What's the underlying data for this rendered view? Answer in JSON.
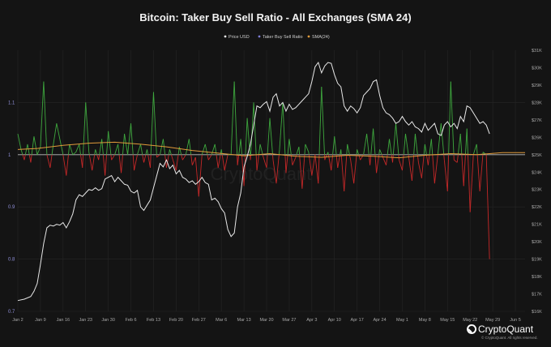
{
  "chart_data": {
    "type": "line",
    "title": "Bitcoin: Taker Buy Sell Ratio - All Exchanges (SMA 24)",
    "legend": {
      "placement": "top-center",
      "entries": [
        {
          "label": "Price USD",
          "color": "#e8e8e8"
        },
        {
          "label": "Taker Buy Sell Ratio",
          "color": "#7e7ed8"
        },
        {
          "label": "SMA(24)",
          "color": "#e09a3a"
        }
      ]
    },
    "colors": {
      "price": "#e8e8e8",
      "ratio_up": "#3ea83e",
      "ratio_down": "#c62828",
      "sma": "#e09a3a",
      "baseline": "#bdbdbd",
      "grid": "#262626",
      "left_axis": "#8f8fd8"
    },
    "x_ticks": [
      "Jan 2",
      "Jan 9",
      "Jan 16",
      "Jan 23",
      "Jan 30",
      "Feb 6",
      "Feb 13",
      "Feb 20",
      "Feb 27",
      "Mar 6",
      "Mar 13",
      "Mar 20",
      "Mar 27",
      "Apr 3",
      "Apr 10",
      "Apr 17",
      "Apr 24",
      "May 1",
      "May 8",
      "May 15",
      "May 22",
      "May 29",
      "Jun 5"
    ],
    "left_axis": {
      "ticks": [
        "0.7",
        "0.8",
        "0.9",
        "1",
        "1.1"
      ],
      "min": 0.7,
      "max": 1.2
    },
    "right_axis": {
      "ticks": [
        "$16K",
        "$17K",
        "$18K",
        "$19K",
        "$20K",
        "$21K",
        "$22K",
        "$23K",
        "$24K",
        "$25K",
        "$26K",
        "$27K",
        "$28K",
        "$29K",
        "$30K",
        "$31K"
      ],
      "min": 16000,
      "max": 31000
    },
    "grid": true,
    "x_range_days": [
      0,
      157
    ],
    "series": [
      {
        "name": "Price USD",
        "axis": "right",
        "points": [
          [
            0,
            16620
          ],
          [
            2,
            16700
          ],
          [
            4,
            16850
          ],
          [
            5,
            17150
          ],
          [
            6,
            17600
          ],
          [
            7,
            18700
          ],
          [
            8,
            19900
          ],
          [
            9,
            20800
          ],
          [
            10,
            20950
          ],
          [
            11,
            20900
          ],
          [
            12,
            21000
          ],
          [
            13,
            20950
          ],
          [
            14,
            21100
          ],
          [
            15,
            20800
          ],
          [
            16,
            21150
          ],
          [
            17,
            21600
          ],
          [
            18,
            22400
          ],
          [
            19,
            22700
          ],
          [
            20,
            22600
          ],
          [
            21,
            22800
          ],
          [
            22,
            23000
          ],
          [
            23,
            22950
          ],
          [
            24,
            23100
          ],
          [
            25,
            22950
          ],
          [
            26,
            23050
          ],
          [
            27,
            23600
          ],
          [
            28,
            23700
          ],
          [
            29,
            23800
          ],
          [
            30,
            23450
          ],
          [
            31,
            23700
          ],
          [
            32,
            23500
          ],
          [
            33,
            23300
          ],
          [
            34,
            23250
          ],
          [
            35,
            22900
          ],
          [
            36,
            22800
          ],
          [
            37,
            22950
          ],
          [
            38,
            22000
          ],
          [
            39,
            21800
          ],
          [
            40,
            22100
          ],
          [
            41,
            22400
          ],
          [
            42,
            23100
          ],
          [
            43,
            23800
          ],
          [
            44,
            24500
          ],
          [
            45,
            24300
          ],
          [
            46,
            24700
          ],
          [
            47,
            24200
          ],
          [
            48,
            24400
          ],
          [
            49,
            23900
          ],
          [
            50,
            24100
          ],
          [
            51,
            23700
          ],
          [
            52,
            23600
          ],
          [
            53,
            23400
          ],
          [
            54,
            23500
          ],
          [
            55,
            23300
          ],
          [
            56,
            23450
          ],
          [
            57,
            23700
          ],
          [
            58,
            23400
          ],
          [
            59,
            23300
          ],
          [
            60,
            22400
          ],
          [
            61,
            22500
          ],
          [
            62,
            22300
          ],
          [
            63,
            21900
          ],
          [
            64,
            21650
          ],
          [
            65,
            20700
          ],
          [
            66,
            20300
          ],
          [
            67,
            20500
          ],
          [
            68,
            22000
          ],
          [
            69,
            22800
          ],
          [
            70,
            24300
          ],
          [
            71,
            24900
          ],
          [
            72,
            25600
          ],
          [
            73,
            26700
          ],
          [
            74,
            27800
          ],
          [
            75,
            27700
          ],
          [
            76,
            27900
          ],
          [
            77,
            28050
          ],
          [
            78,
            27500
          ],
          [
            79,
            28300
          ],
          [
            80,
            28500
          ],
          [
            81,
            27800
          ],
          [
            82,
            28000
          ],
          [
            83,
            27500
          ],
          [
            84,
            27900
          ],
          [
            85,
            27600
          ],
          [
            86,
            27700
          ],
          [
            87,
            27900
          ],
          [
            88,
            28100
          ],
          [
            89,
            28300
          ],
          [
            90,
            28500
          ],
          [
            91,
            29200
          ],
          [
            92,
            30050
          ],
          [
            93,
            30300
          ],
          [
            94,
            29700
          ],
          [
            95,
            30100
          ],
          [
            96,
            30300
          ],
          [
            97,
            30250
          ],
          [
            98,
            29600
          ],
          [
            99,
            29100
          ],
          [
            100,
            28900
          ],
          [
            101,
            27800
          ],
          [
            102,
            27500
          ],
          [
            103,
            27800
          ],
          [
            104,
            27650
          ],
          [
            105,
            27400
          ],
          [
            106,
            27700
          ],
          [
            107,
            28400
          ],
          [
            108,
            28600
          ],
          [
            109,
            28800
          ],
          [
            110,
            29200
          ],
          [
            111,
            29300
          ],
          [
            112,
            28400
          ],
          [
            113,
            27700
          ],
          [
            114,
            27400
          ],
          [
            115,
            27300
          ],
          [
            116,
            27100
          ],
          [
            117,
            26800
          ],
          [
            118,
            26900
          ],
          [
            119,
            27200
          ],
          [
            120,
            26900
          ],
          [
            121,
            26700
          ],
          [
            122,
            26900
          ],
          [
            123,
            26600
          ],
          [
            124,
            26500
          ],
          [
            125,
            26300
          ],
          [
            126,
            26800
          ],
          [
            127,
            26400
          ],
          [
            128,
            26600
          ],
          [
            129,
            26800
          ],
          [
            130,
            26200
          ],
          [
            131,
            26100
          ],
          [
            132,
            26700
          ],
          [
            133,
            26900
          ],
          [
            134,
            26600
          ],
          [
            135,
            26800
          ],
          [
            136,
            26500
          ],
          [
            137,
            27200
          ],
          [
            138,
            26900
          ],
          [
            139,
            27800
          ],
          [
            140,
            27700
          ],
          [
            141,
            27400
          ],
          [
            142,
            27100
          ],
          [
            143,
            26800
          ],
          [
            144,
            26900
          ],
          [
            145,
            26700
          ],
          [
            146,
            26200
          ]
        ]
      },
      {
        "name": "Taker Buy Sell Ratio",
        "axis": "left",
        "base": 1.0,
        "values": [
          1.04,
          1.01,
          0.99,
          1.02,
          0.985,
          1.035,
          1.0,
          1.015,
          1.14,
          1.0,
          0.975,
          1.02,
          1.06,
          1.03,
          1.0,
          0.96,
          1.02,
          1.0,
          1.005,
          1.02,
          0.975,
          1.1,
          1.005,
          0.97,
          1.01,
          0.99,
          1.03,
          0.96,
          1.045,
          0.99,
          1.0,
          1.02,
          0.965,
          1.04,
          1.0,
          1.06,
          0.97,
          1.0,
          1.02,
          0.985,
          1.01,
          0.975,
          1.12,
          0.995,
          1.0,
          1.03,
          0.975,
          1.01,
          0.99,
          0.97,
          1.015,
          0.99,
          1.0,
          1.03,
          0.98,
          0.995,
          0.92,
          1.0,
          1.02,
          0.99,
          1.0,
          1.02,
          0.975,
          1.01,
          0.97,
          1.0,
          1.0,
          1.14,
          0.98,
          1.03,
          0.94,
          1.07,
          0.99,
          1.1,
          0.97,
          1.02,
          0.995,
          0.975,
          1.07,
          0.99,
          0.945,
          1.01,
          1.1,
          0.965,
          1.03,
          0.98,
          0.995,
          1.015,
          0.935,
          1.02,
          1.005,
          0.96,
          1.0,
          0.945,
          1.13,
          0.99,
          1.005,
          0.97,
          1.035,
          0.975,
          1.01,
          0.93,
          1.02,
          0.99,
          0.945,
          1.01,
          0.99,
          1.0,
          1.04,
          0.98,
          1.05,
          0.965,
          1.01,
          0.995,
          0.98,
          1.03,
          0.985,
          1.06,
          0.99,
          0.97,
          1.04,
          0.995,
          0.95,
          1.04,
          0.985,
          0.955,
          1.02,
          0.98,
          1.03,
          0.945,
          1.0,
          1.06,
          0.99,
          0.93,
          1.14,
          0.99,
          0.985,
          1.04,
          0.94,
          1.05,
          0.89,
          1.0,
          1.02,
          0.93,
          1.005,
          1.0,
          0.8
        ]
      },
      {
        "name": "SMA(24)",
        "axis": "left",
        "points": [
          [
            0,
            1.01
          ],
          [
            6,
            1.012
          ],
          [
            14,
            1.018
          ],
          [
            22,
            1.022
          ],
          [
            30,
            1.024
          ],
          [
            38,
            1.02
          ],
          [
            46,
            1.015
          ],
          [
            54,
            1.008
          ],
          [
            62,
            1.003
          ],
          [
            70,
            0.998
          ],
          [
            78,
            1.002
          ],
          [
            86,
            0.997
          ],
          [
            94,
            0.995
          ],
          [
            102,
            0.999
          ],
          [
            110,
            0.997
          ],
          [
            118,
            0.994
          ],
          [
            126,
            0.999
          ],
          [
            134,
            1.002
          ],
          [
            142,
            1.0
          ],
          [
            150,
            1.004
          ],
          [
            157,
            1.004
          ]
        ]
      }
    ],
    "watermark": "CryptoQuant"
  },
  "brand": {
    "name": "CryptoQuant",
    "copyright": "© CryptoQuant. All rights reserved."
  }
}
